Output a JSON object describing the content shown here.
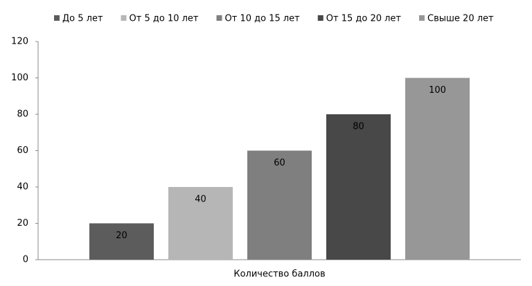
{
  "chart_data": {
    "type": "bar",
    "categories": [
      "Количество баллов"
    ],
    "series": [
      {
        "name": "До 5 лет",
        "color": "#5c5c5c",
        "values": [
          20
        ]
      },
      {
        "name": "От 5 до 10 лет",
        "color": "#b6b6b6",
        "values": [
          40
        ]
      },
      {
        "name": "От 10 до 15 лет",
        "color": "#7f7f7f",
        "values": [
          60
        ]
      },
      {
        "name": "От 15 до 20 лет",
        "color": "#484848",
        "values": [
          80
        ]
      },
      {
        "name": "Свыше 20 лет",
        "color": "#979797",
        "values": [
          100
        ]
      }
    ],
    "ylim": [
      0,
      120
    ],
    "yticks": [
      0,
      20,
      40,
      60,
      80,
      100,
      120
    ],
    "legend": "top",
    "data_labels": true
  }
}
